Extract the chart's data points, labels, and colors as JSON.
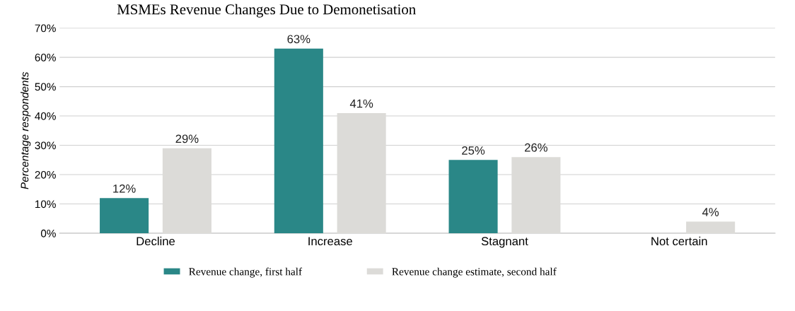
{
  "chart_data": {
    "type": "bar",
    "title": "MSMEs Revenue Changes Due to Demonetisation",
    "ylabel": "Percentage respondents",
    "categories": [
      "Decline",
      "Increase",
      "Stagnant",
      "Not certain"
    ],
    "series": [
      {
        "name": "Revenue change, first half",
        "color": "#2a8787",
        "values": [
          12,
          63,
          25,
          null
        ],
        "value_labels": [
          "12%",
          "63%",
          "25%",
          null
        ]
      },
      {
        "name": "Revenue change estimate, second half",
        "color": "#dcdbd8",
        "values": [
          29,
          41,
          26,
          4
        ],
        "value_labels": [
          "29%",
          "41%",
          "26%",
          "4%"
        ]
      }
    ],
    "ylim": [
      0,
      70
    ],
    "yticks": [
      {
        "value": 0,
        "label": "0%"
      },
      {
        "value": 10,
        "label": "10%"
      },
      {
        "value": 20,
        "label": "20%"
      },
      {
        "value": 30,
        "label": "30%"
      },
      {
        "value": 40,
        "label": "40%"
      },
      {
        "value": 50,
        "label": "50%"
      },
      {
        "value": 60,
        "label": "60%"
      },
      {
        "value": 70,
        "label": "70%"
      }
    ],
    "grid": "y",
    "legend": "bottom"
  }
}
